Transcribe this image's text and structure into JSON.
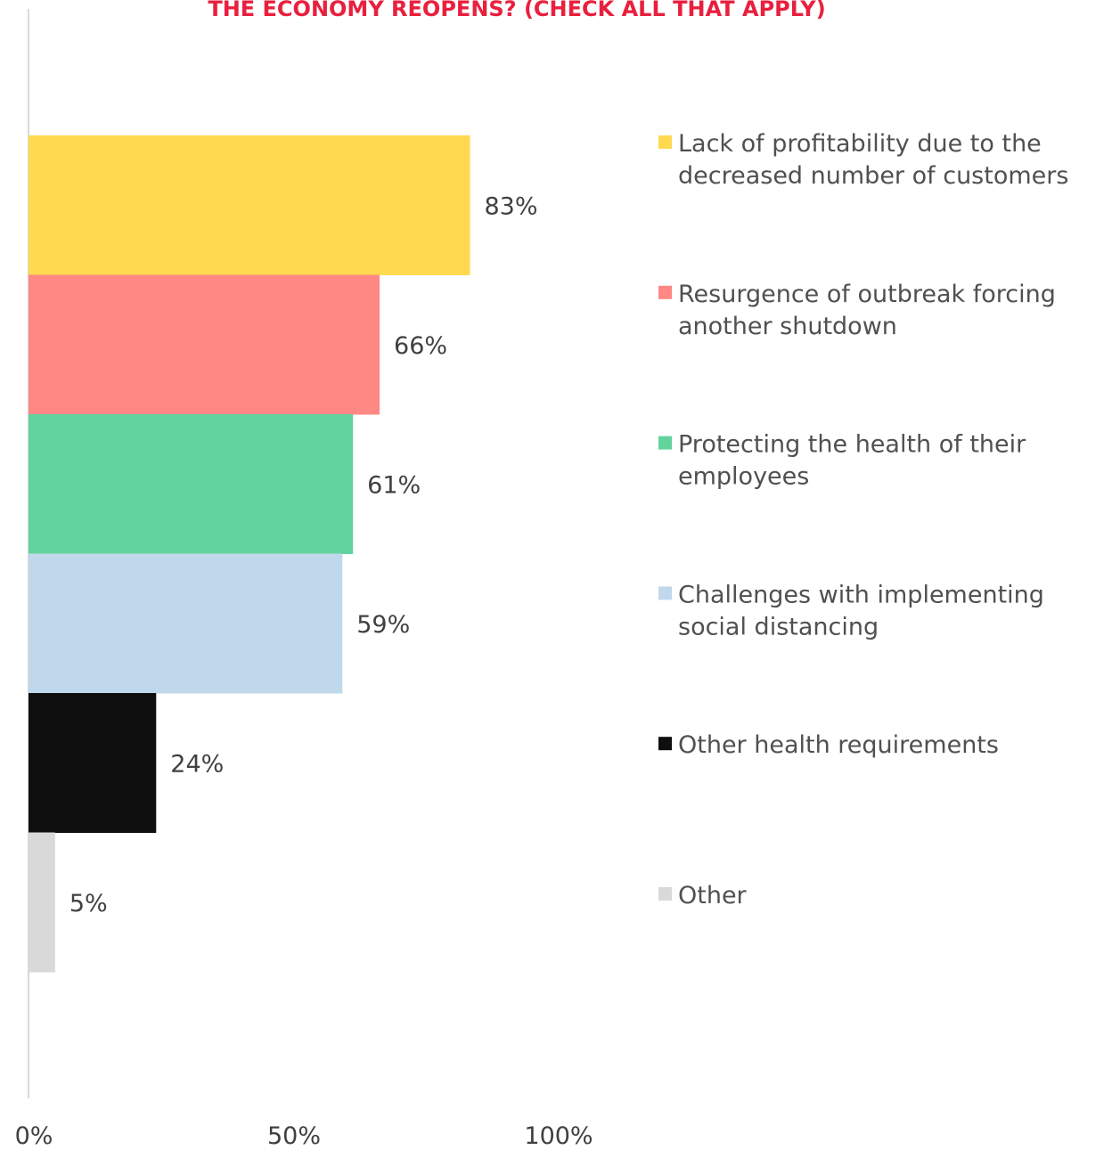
{
  "chart_data": {
    "type": "bar",
    "orientation": "horizontal",
    "title": "THE ECONOMY REOPENS? (CHECK ALL THAT APPLY)",
    "categories": [
      "Lack of profitability due to the decreased number of customers",
      "Resurgence of outbreak forcing another shutdown",
      "Protecting the health of their employees",
      "Challenges with implementing social distancing",
      "Other health requirements",
      "Other"
    ],
    "values": [
      83,
      66,
      61,
      59,
      24,
      5
    ],
    "value_labels": [
      "83%",
      "66%",
      "61%",
      "59%",
      "24%",
      "5%"
    ],
    "colors": [
      "#FFD94F",
      "#FF8885",
      "#62D39C",
      "#C0D8EB",
      "#0F0F0F",
      "#D9D9D9"
    ],
    "legend": {
      "placement": "right",
      "entries": [
        [
          "Lack of profitability due to the",
          "decreased number of customers"
        ],
        [
          "Resurgence of outbreak forcing",
          "another shutdown"
        ],
        [
          "Protecting the health of their",
          "employees"
        ],
        [
          "Challenges with implementing",
          "social distancing"
        ],
        [
          "Other health requirements"
        ],
        [
          "Other"
        ]
      ]
    },
    "x_ticks": [
      "0%",
      "50%",
      "100%"
    ],
    "x_tick_values": [
      0,
      50,
      100
    ],
    "xlim": [
      0,
      100
    ],
    "grid": false
  }
}
